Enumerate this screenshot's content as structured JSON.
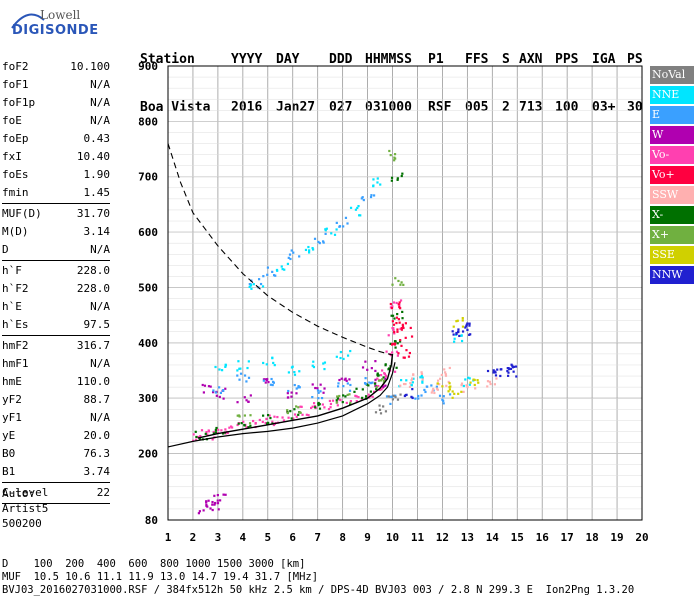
{
  "logo": {
    "line1": "Lowell",
    "line2": "DIGISONDE"
  },
  "header": {
    "labels": [
      {
        "text": "Station",
        "x": 140
      },
      {
        "text": "YYYY",
        "x": 231
      },
      {
        "text": "DAY",
        "x": 276
      },
      {
        "text": "DDD",
        "x": 329
      },
      {
        "text": "HHMMSS",
        "x": 365
      },
      {
        "text": "P1",
        "x": 428
      },
      {
        "text": "FFS",
        "x": 465
      },
      {
        "text": "S",
        "x": 502
      },
      {
        "text": "AXN",
        "x": 519
      },
      {
        "text": "PPS",
        "x": 555
      },
      {
        "text": "IGA",
        "x": 592
      },
      {
        "text": "PS",
        "x": 627
      }
    ],
    "values": [
      {
        "text": "Boa Vista",
        "x": 140
      },
      {
        "text": "2016",
        "x": 231
      },
      {
        "text": "Jan27",
        "x": 276
      },
      {
        "text": "027",
        "x": 329
      },
      {
        "text": "031000",
        "x": 365
      },
      {
        "text": "RSF",
        "x": 428
      },
      {
        "text": "005",
        "x": 465
      },
      {
        "text": "2",
        "x": 502
      },
      {
        "text": "713",
        "x": 519
      },
      {
        "text": "100",
        "x": 555
      },
      {
        "text": "03+",
        "x": 592
      },
      {
        "text": "30",
        "x": 627
      }
    ]
  },
  "params": [
    {
      "group": [
        {
          "k": "foF2",
          "v": "10.100"
        },
        {
          "k": "foF1",
          "v": "N/A"
        },
        {
          "k": "foF1p",
          "v": "N/A"
        },
        {
          "k": "foE",
          "v": "N/A"
        },
        {
          "k": "foEp",
          "v": "0.43"
        },
        {
          "k": "fxI",
          "v": "10.40"
        },
        {
          "k": "foEs",
          "v": "1.90"
        },
        {
          "k": "fmin",
          "v": "1.45"
        }
      ]
    },
    {
      "group": [
        {
          "k": "MUF(D)",
          "v": "31.70"
        },
        {
          "k": "M(D)",
          "v": "3.14"
        },
        {
          "k": "D",
          "v": "N/A"
        }
      ]
    },
    {
      "group": [
        {
          "k": "h`F",
          "v": "228.0"
        },
        {
          "k": "h`F2",
          "v": "228.0"
        },
        {
          "k": "h`E",
          "v": "N/A"
        },
        {
          "k": "h`Es",
          "v": "97.5"
        }
      ]
    },
    {
      "group": [
        {
          "k": "hmF2",
          "v": "316.7"
        },
        {
          "k": "hmF1",
          "v": "N/A"
        },
        {
          "k": "hmE",
          "v": "110.0"
        },
        {
          "k": "yF2",
          "v": "88.7"
        },
        {
          "k": "yF1",
          "v": "N/A"
        },
        {
          "k": "yE",
          "v": "20.0"
        },
        {
          "k": "B0",
          "v": "76.3"
        },
        {
          "k": "B1",
          "v": "3.74"
        }
      ]
    },
    {
      "group": [
        {
          "k": "C-level",
          "v": "22"
        }
      ]
    }
  ],
  "auto": [
    "Auto:",
    "Artist5",
    "500200"
  ],
  "legend": [
    {
      "label": "NoVal",
      "color": "#808080"
    },
    {
      "label": "NNE",
      "color": "#00e5ff"
    },
    {
      "label": "E",
      "color": "#3aa0ff"
    },
    {
      "label": "W",
      "color": "#b000b0"
    },
    {
      "label": "Vo-",
      "color": "#ff40b0"
    },
    {
      "label": "Vo+",
      "color": "#ff0040"
    },
    {
      "label": "SSW",
      "color": "#ffb0b0"
    },
    {
      "label": "X-",
      "color": "#007000"
    },
    {
      "label": "X+",
      "color": "#70b040"
    },
    {
      "label": "SSE",
      "color": "#d0d000"
    },
    {
      "label": "NNW",
      "color": "#2020d0"
    }
  ],
  "footer": [
    "D    100  200  400  600  800 1000 1500 3000 [km]",
    "MUF  10.5 10.6 11.1 11.9 13.0 14.7 19.4 31.7 [MHz]",
    "BVJ03_2016027031000.RSF / 384fx512h 50 kHz 2.5 km / DPS-4D BVJ03 003 / 2.8 N 299.3 E  Ion2Png 1.3.20"
  ],
  "chart_data": {
    "type": "scatter",
    "xlim": [
      1,
      20
    ],
    "ylim": [
      80,
      900
    ],
    "xticks": [
      1,
      2,
      3,
      4,
      5,
      6,
      7,
      8,
      9,
      10,
      11,
      12,
      13,
      14,
      15,
      16,
      17,
      18,
      19,
      20
    ],
    "yticks": [
      80,
      200,
      300,
      400,
      500,
      600,
      700,
      800,
      900
    ],
    "grid": true,
    "series": [
      {
        "name": "Vo-",
        "color": "#ff40b0",
        "points": [
          [
            2.2,
            232
          ],
          [
            2.5,
            236
          ],
          [
            3,
            240
          ],
          [
            3.5,
            246
          ],
          [
            4,
            252
          ],
          [
            4.5,
            256
          ],
          [
            5,
            262
          ],
          [
            5.5,
            266
          ],
          [
            6,
            272
          ],
          [
            6.5,
            278
          ],
          [
            7,
            284
          ],
          [
            7.5,
            290
          ],
          [
            8,
            296
          ],
          [
            8.5,
            304
          ],
          [
            9,
            312
          ],
          [
            9.3,
            322
          ],
          [
            9.6,
            335
          ],
          [
            9.8,
            350
          ],
          [
            9.95,
            380
          ],
          [
            10.05,
            420
          ],
          [
            10.1,
            470
          ]
        ]
      },
      {
        "name": "X-",
        "color": "#007000",
        "points": [
          [
            2.3,
            236
          ],
          [
            3,
            242
          ],
          [
            4,
            254
          ],
          [
            5,
            264
          ],
          [
            6,
            274
          ],
          [
            7,
            286
          ],
          [
            8,
            298
          ],
          [
            8.7,
            310
          ],
          [
            9.2,
            322
          ],
          [
            9.6,
            340
          ],
          [
            9.9,
            360
          ],
          [
            10.1,
            400
          ],
          [
            10.2,
            450
          ],
          [
            10.2,
            700
          ]
        ]
      },
      {
        "name": "Vo+",
        "color": "#ff0040",
        "points": [
          [
            10,
            470
          ],
          [
            10.2,
            440
          ],
          [
            10.3,
            430
          ],
          [
            10.6,
            420
          ],
          [
            10.2,
            400
          ],
          [
            10.4,
            380
          ]
        ]
      },
      {
        "name": "W",
        "color": "#b000b0",
        "points": [
          [
            2.5,
            320
          ],
          [
            3,
            310
          ],
          [
            4,
            300
          ],
          [
            5,
            330
          ],
          [
            6,
            305
          ],
          [
            7,
            320
          ],
          [
            8,
            340
          ],
          [
            9,
            360
          ],
          [
            9.5,
            330
          ],
          [
            2.4,
            100
          ],
          [
            2.7,
            110
          ],
          [
            2.9,
            108
          ],
          [
            3,
            120
          ]
        ]
      },
      {
        "name": "E",
        "color": "#3aa0ff",
        "points": [
          [
            3,
            320
          ],
          [
            4,
            340
          ],
          [
            5,
            330
          ],
          [
            6,
            320
          ],
          [
            7,
            310
          ],
          [
            8,
            320
          ],
          [
            9,
            330
          ],
          [
            10,
            300
          ],
          [
            11,
            310
          ],
          [
            11.5,
            320
          ],
          [
            12,
            300
          ],
          [
            4.5,
            510
          ],
          [
            5,
            530
          ],
          [
            6,
            560
          ],
          [
            7,
            590
          ],
          [
            8,
            620
          ],
          [
            9,
            660
          ]
        ]
      },
      {
        "name": "NNE",
        "color": "#00e5ff",
        "points": [
          [
            3,
            360
          ],
          [
            4,
            360
          ],
          [
            5,
            370
          ],
          [
            6,
            350
          ],
          [
            7,
            360
          ],
          [
            8,
            380
          ],
          [
            10.5,
            330
          ],
          [
            11,
            335
          ],
          [
            12.5,
            410
          ],
          [
            13,
            330
          ],
          [
            4.5,
            500
          ],
          [
            5.5,
            540
          ],
          [
            6.5,
            570
          ],
          [
            7.5,
            600
          ],
          [
            8.5,
            640
          ],
          [
            9.2,
            690
          ]
        ]
      },
      {
        "name": "SSW",
        "color": "#ffb0b0",
        "points": [
          [
            10.5,
            330
          ],
          [
            11,
            340
          ],
          [
            11.5,
            320
          ],
          [
            12,
            330
          ],
          [
            12.2,
            350
          ],
          [
            13,
            320
          ],
          [
            14,
            330
          ]
        ]
      },
      {
        "name": "X+",
        "color": "#70b040",
        "points": [
          [
            4,
            265
          ],
          [
            6,
            280
          ],
          [
            8,
            300
          ],
          [
            9.5,
            330
          ],
          [
            10.2,
            510
          ],
          [
            10.1,
            740
          ]
        ]
      },
      {
        "name": "SSE",
        "color": "#d0d000",
        "points": [
          [
            12,
            320
          ],
          [
            12.5,
            310
          ],
          [
            13.3,
            330
          ],
          [
            12.6,
            440
          ]
        ]
      },
      {
        "name": "NNW",
        "color": "#2020d0",
        "points": [
          [
            12.6,
            420
          ],
          [
            12.8,
            420
          ],
          [
            13,
            430
          ],
          [
            14,
            350
          ],
          [
            14.3,
            350
          ],
          [
            14.7,
            355
          ],
          [
            14.8,
            350
          ],
          [
            10.7,
            310
          ]
        ]
      },
      {
        "name": "NoVal",
        "color": "#808080",
        "points": [
          [
            9.5,
            280
          ],
          [
            10,
            300
          ]
        ]
      }
    ],
    "profile_solid": [
      [
        1,
        212
      ],
      [
        2,
        222
      ],
      [
        3,
        230
      ],
      [
        4,
        236
      ],
      [
        5,
        240
      ],
      [
        6,
        246
      ],
      [
        7,
        255
      ],
      [
        8,
        268
      ],
      [
        9,
        290
      ],
      [
        9.5,
        305
      ],
      [
        9.8,
        320
      ],
      [
        10.0,
        345
      ],
      [
        10.1,
        365
      ]
    ],
    "trace_solid": [
      [
        2.2,
        228
      ],
      [
        3,
        236
      ],
      [
        4,
        244
      ],
      [
        5,
        252
      ],
      [
        6,
        260
      ],
      [
        7,
        268
      ],
      [
        8,
        282
      ],
      [
        9,
        300
      ],
      [
        9.5,
        318
      ],
      [
        9.8,
        335
      ],
      [
        9.95,
        360
      ],
      [
        10.0,
        380
      ]
    ],
    "profile_dashed": [
      [
        1,
        760
      ],
      [
        1.5,
        690
      ],
      [
        2,
        635
      ],
      [
        3,
        575
      ],
      [
        4,
        525
      ],
      [
        5,
        485
      ],
      [
        6,
        455
      ],
      [
        7,
        430
      ],
      [
        8,
        410
      ],
      [
        9,
        392
      ],
      [
        9.5,
        384
      ],
      [
        10,
        378
      ]
    ]
  }
}
